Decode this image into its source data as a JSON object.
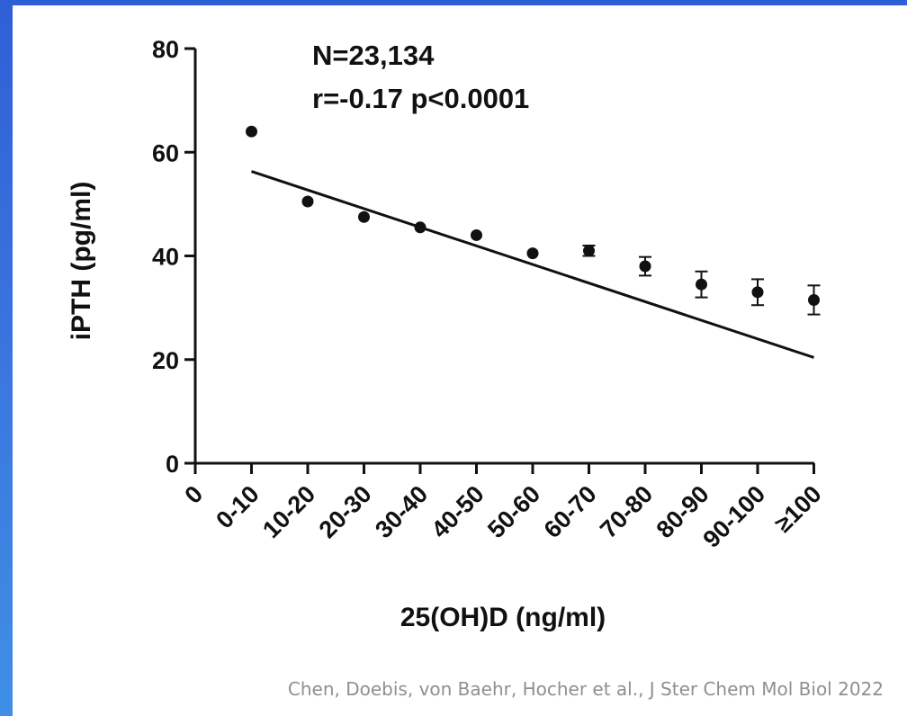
{
  "chart_data": {
    "type": "scatter",
    "xlabel": "25(OH)D (ng/ml)",
    "ylabel": "iPTH (pg/ml)",
    "ylim": [
      0,
      80
    ],
    "yticks": [
      "0",
      "20",
      "40",
      "60",
      "80"
    ],
    "categories": [
      "0",
      "0-10",
      "10-20",
      "20-30",
      "30-40",
      "40-50",
      "50-60",
      "60-70",
      "70-80",
      "80-90",
      "90-100",
      "≥100"
    ],
    "points": [
      {
        "category": "0-10",
        "y": 64.0,
        "err": 0
      },
      {
        "category": "10-20",
        "y": 50.5,
        "err": 0
      },
      {
        "category": "20-30",
        "y": 47.5,
        "err": 0
      },
      {
        "category": "30-40",
        "y": 45.5,
        "err": 0
      },
      {
        "category": "40-50",
        "y": 44.0,
        "err": 0
      },
      {
        "category": "50-60",
        "y": 40.5,
        "err": 0
      },
      {
        "category": "60-70",
        "y": 41.0,
        "err": 1.0
      },
      {
        "category": "70-80",
        "y": 38.0,
        "err": 1.8
      },
      {
        "category": "80-90",
        "y": 34.5,
        "err": 2.5
      },
      {
        "category": "90-100",
        "y": 33.0,
        "err": 2.5
      },
      {
        "category": "≥100",
        "y": 31.5,
        "err": 2.8
      }
    ],
    "trendline": {
      "from": {
        "category": "0-10",
        "y": 56.3
      },
      "to": {
        "category": "≥100",
        "y": 20.4
      }
    },
    "annotations": [
      "N=23,134",
      "r=-0.17 p<0.0001"
    ],
    "grid": false,
    "legend": "none"
  },
  "citation": "Chen, Doebis, von Baehr, Hocher et al., J Ster Chem Mol Biol 2022",
  "colors": {
    "marker": "#111111",
    "background": "#ffffff",
    "frame": "#3b78df",
    "citation": "#8f8f8f"
  }
}
